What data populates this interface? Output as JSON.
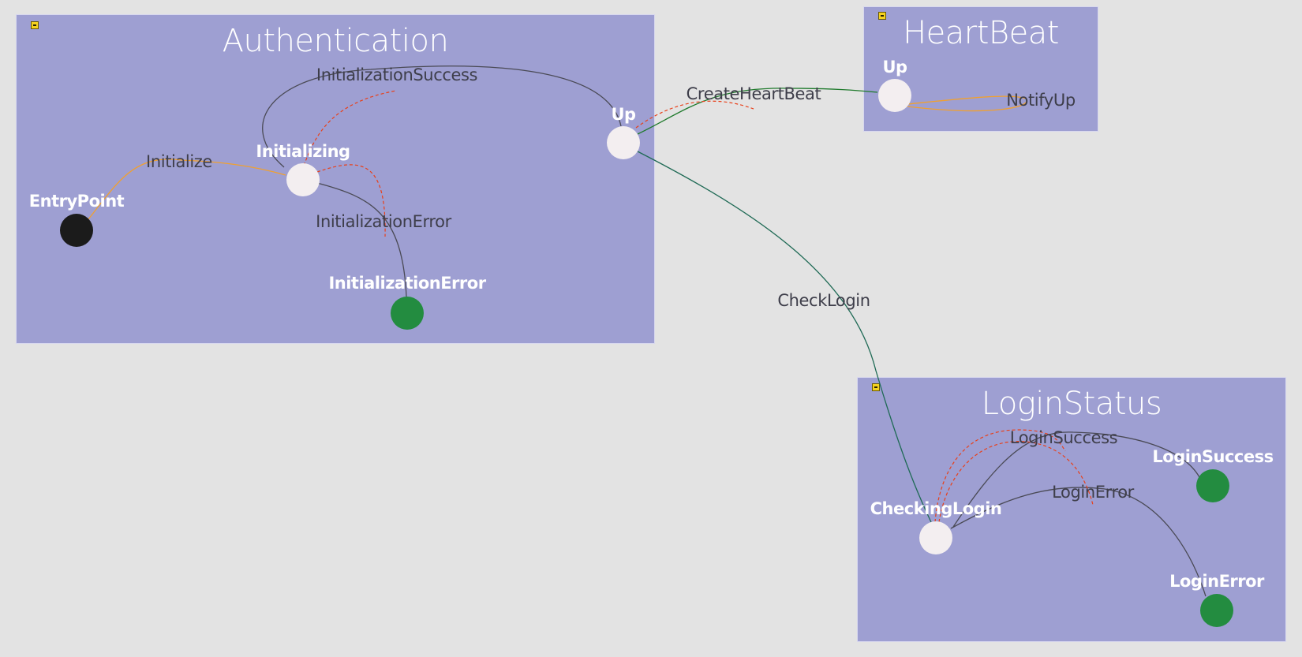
{
  "groups": {
    "authentication": {
      "title": "Authentication"
    },
    "heartbeat": {
      "title": "HeartBeat"
    },
    "loginstatus": {
      "title": "LoginStatus"
    }
  },
  "states": {
    "entry_point": "EntryPoint",
    "initializing": "Initializing",
    "initialization_error": "InitializationError",
    "auth_up": "Up",
    "heartbeat_up": "Up",
    "checking_login": "CheckingLogin",
    "login_success": "LoginSuccess",
    "login_error": "LoginError"
  },
  "transitions": {
    "initialize": "Initialize",
    "initialization_success": "InitializationSuccess",
    "initialization_error": "InitializationError",
    "create_heartbeat": "CreateHeartBeat",
    "notify_up": "NotifyUp",
    "check_login": "CheckLogin",
    "login_success": "LoginSuccess",
    "login_error": "LoginError"
  },
  "colors": {
    "background": "#e3e3e3",
    "group_fill": "#9e9fd2",
    "node_default": "#f3eef0",
    "node_entry": "#1b1b1b",
    "node_final": "#238c40",
    "edge_default": "#4a4a55",
    "edge_orange": "#f0a030",
    "edge_green": "#1f7a2c",
    "edge_red_dashed": "#e8401a"
  }
}
